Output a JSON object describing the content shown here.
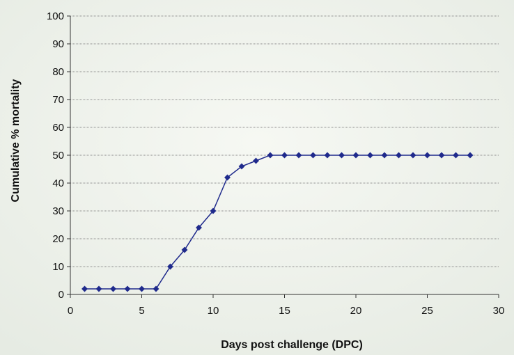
{
  "chart_data": {
    "type": "line",
    "title": "",
    "xlabel": "Days post challenge (DPC)",
    "ylabel": "Cumulative % mortality",
    "xlim": [
      0,
      30
    ],
    "ylim": [
      0,
      100
    ],
    "x_ticks": [
      0,
      5,
      10,
      15,
      20,
      25,
      30
    ],
    "y_ticks": [
      0,
      10,
      20,
      30,
      40,
      50,
      60,
      70,
      80,
      90,
      100
    ],
    "grid": "horizontal",
    "legend": "none",
    "series": [
      {
        "color": "#1f2a8c",
        "marker": "diamond",
        "x": [
          1,
          2,
          3,
          4,
          5,
          6,
          7,
          8,
          9,
          10,
          11,
          12,
          13,
          14,
          15,
          16,
          17,
          18,
          19,
          20,
          21,
          22,
          23,
          24,
          25,
          26,
          27,
          28
        ],
        "y": [
          2,
          2,
          2,
          2,
          2,
          2,
          10,
          16,
          24,
          30,
          42,
          46,
          48,
          50,
          50,
          50,
          50,
          50,
          50,
          50,
          50,
          50,
          50,
          50,
          50,
          50,
          50,
          50
        ]
      }
    ]
  }
}
